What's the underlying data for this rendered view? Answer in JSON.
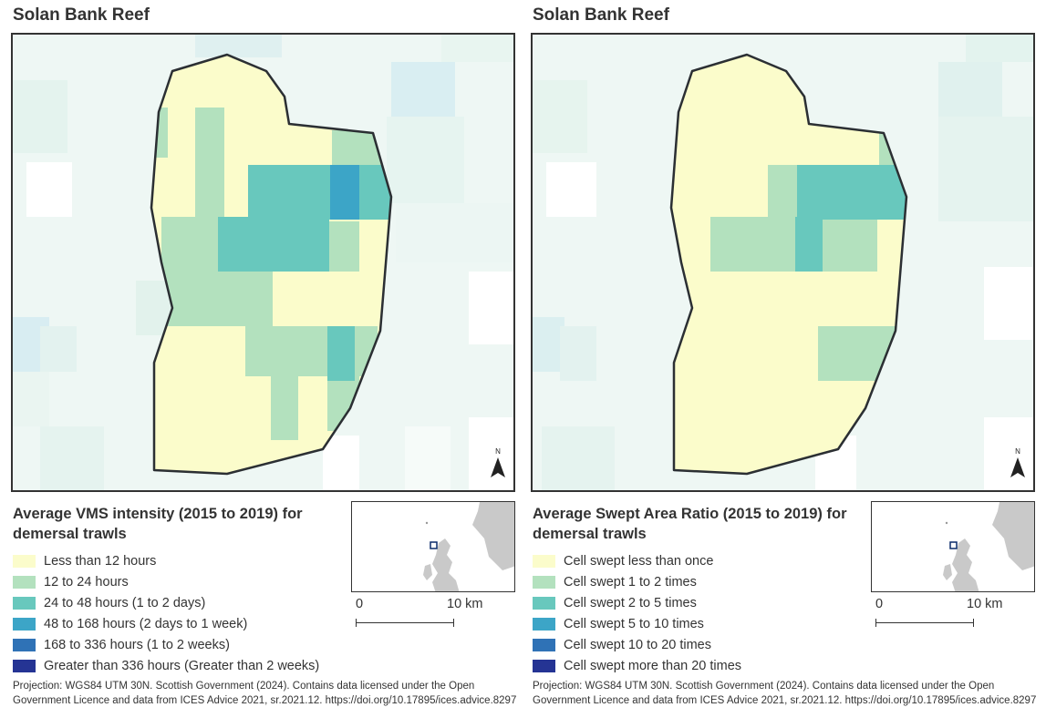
{
  "panels": [
    {
      "title": "Solan Bank Reef",
      "legend": {
        "title": "Average VMS intensity (2015 to 2019) for demersal trawls",
        "items": [
          {
            "label": "Less than 12 hours",
            "color": "#fbfccb"
          },
          {
            "label": "12 to 24 hours",
            "color": "#b3e1be"
          },
          {
            "label": "24 to 48 hours (1 to 2 days)",
            "color": "#68c8bd"
          },
          {
            "label": "48 to 168 hours (2 days to 1 week)",
            "color": "#3ca5c7"
          },
          {
            "label": "168 to 336 hours (1 to 2 weeks)",
            "color": "#2f72b6"
          },
          {
            "label": "Greater than 336 hours (Greater than 2 weeks)",
            "color": "#253494"
          }
        ]
      },
      "scale": {
        "start": "0",
        "end": "10 km"
      },
      "credits": "Projection: WGS84 UTM 30N. Scottish Government (2024). Contains data licensed under the Open Government Licence and data from ICES Advice 2021, sr.2021.12. https://doi.org/10.17895/ices.advice.8297"
    },
    {
      "title": "Solan Bank Reef",
      "legend": {
        "title": "Average Swept Area Ratio (2015 to 2019) for demersal trawls",
        "items": [
          {
            "label": "Cell swept less than once",
            "color": "#fbfccb"
          },
          {
            "label": "Cell swept 1 to 2 times",
            "color": "#b3e1be"
          },
          {
            "label": "Cell swept 2 to 5 times",
            "color": "#68c8bd"
          },
          {
            "label": "Cell swept 5 to 10 times",
            "color": "#3ca5c7"
          },
          {
            "label": "Cell swept 10 to 20 times",
            "color": "#2f72b6"
          },
          {
            "label": "Cell swept more than 20 times",
            "color": "#253494"
          }
        ]
      },
      "scale": {
        "start": "0",
        "end": "10 km"
      },
      "credits": "Projection: WGS84 UTM 30N. Scottish Government (2024). Contains data licensed under the Open Government Licence and data from ICES Advice 2021, sr.2021.12. https://doi.org/10.17895/ices.advice.8297"
    }
  ],
  "north_label": "N"
}
